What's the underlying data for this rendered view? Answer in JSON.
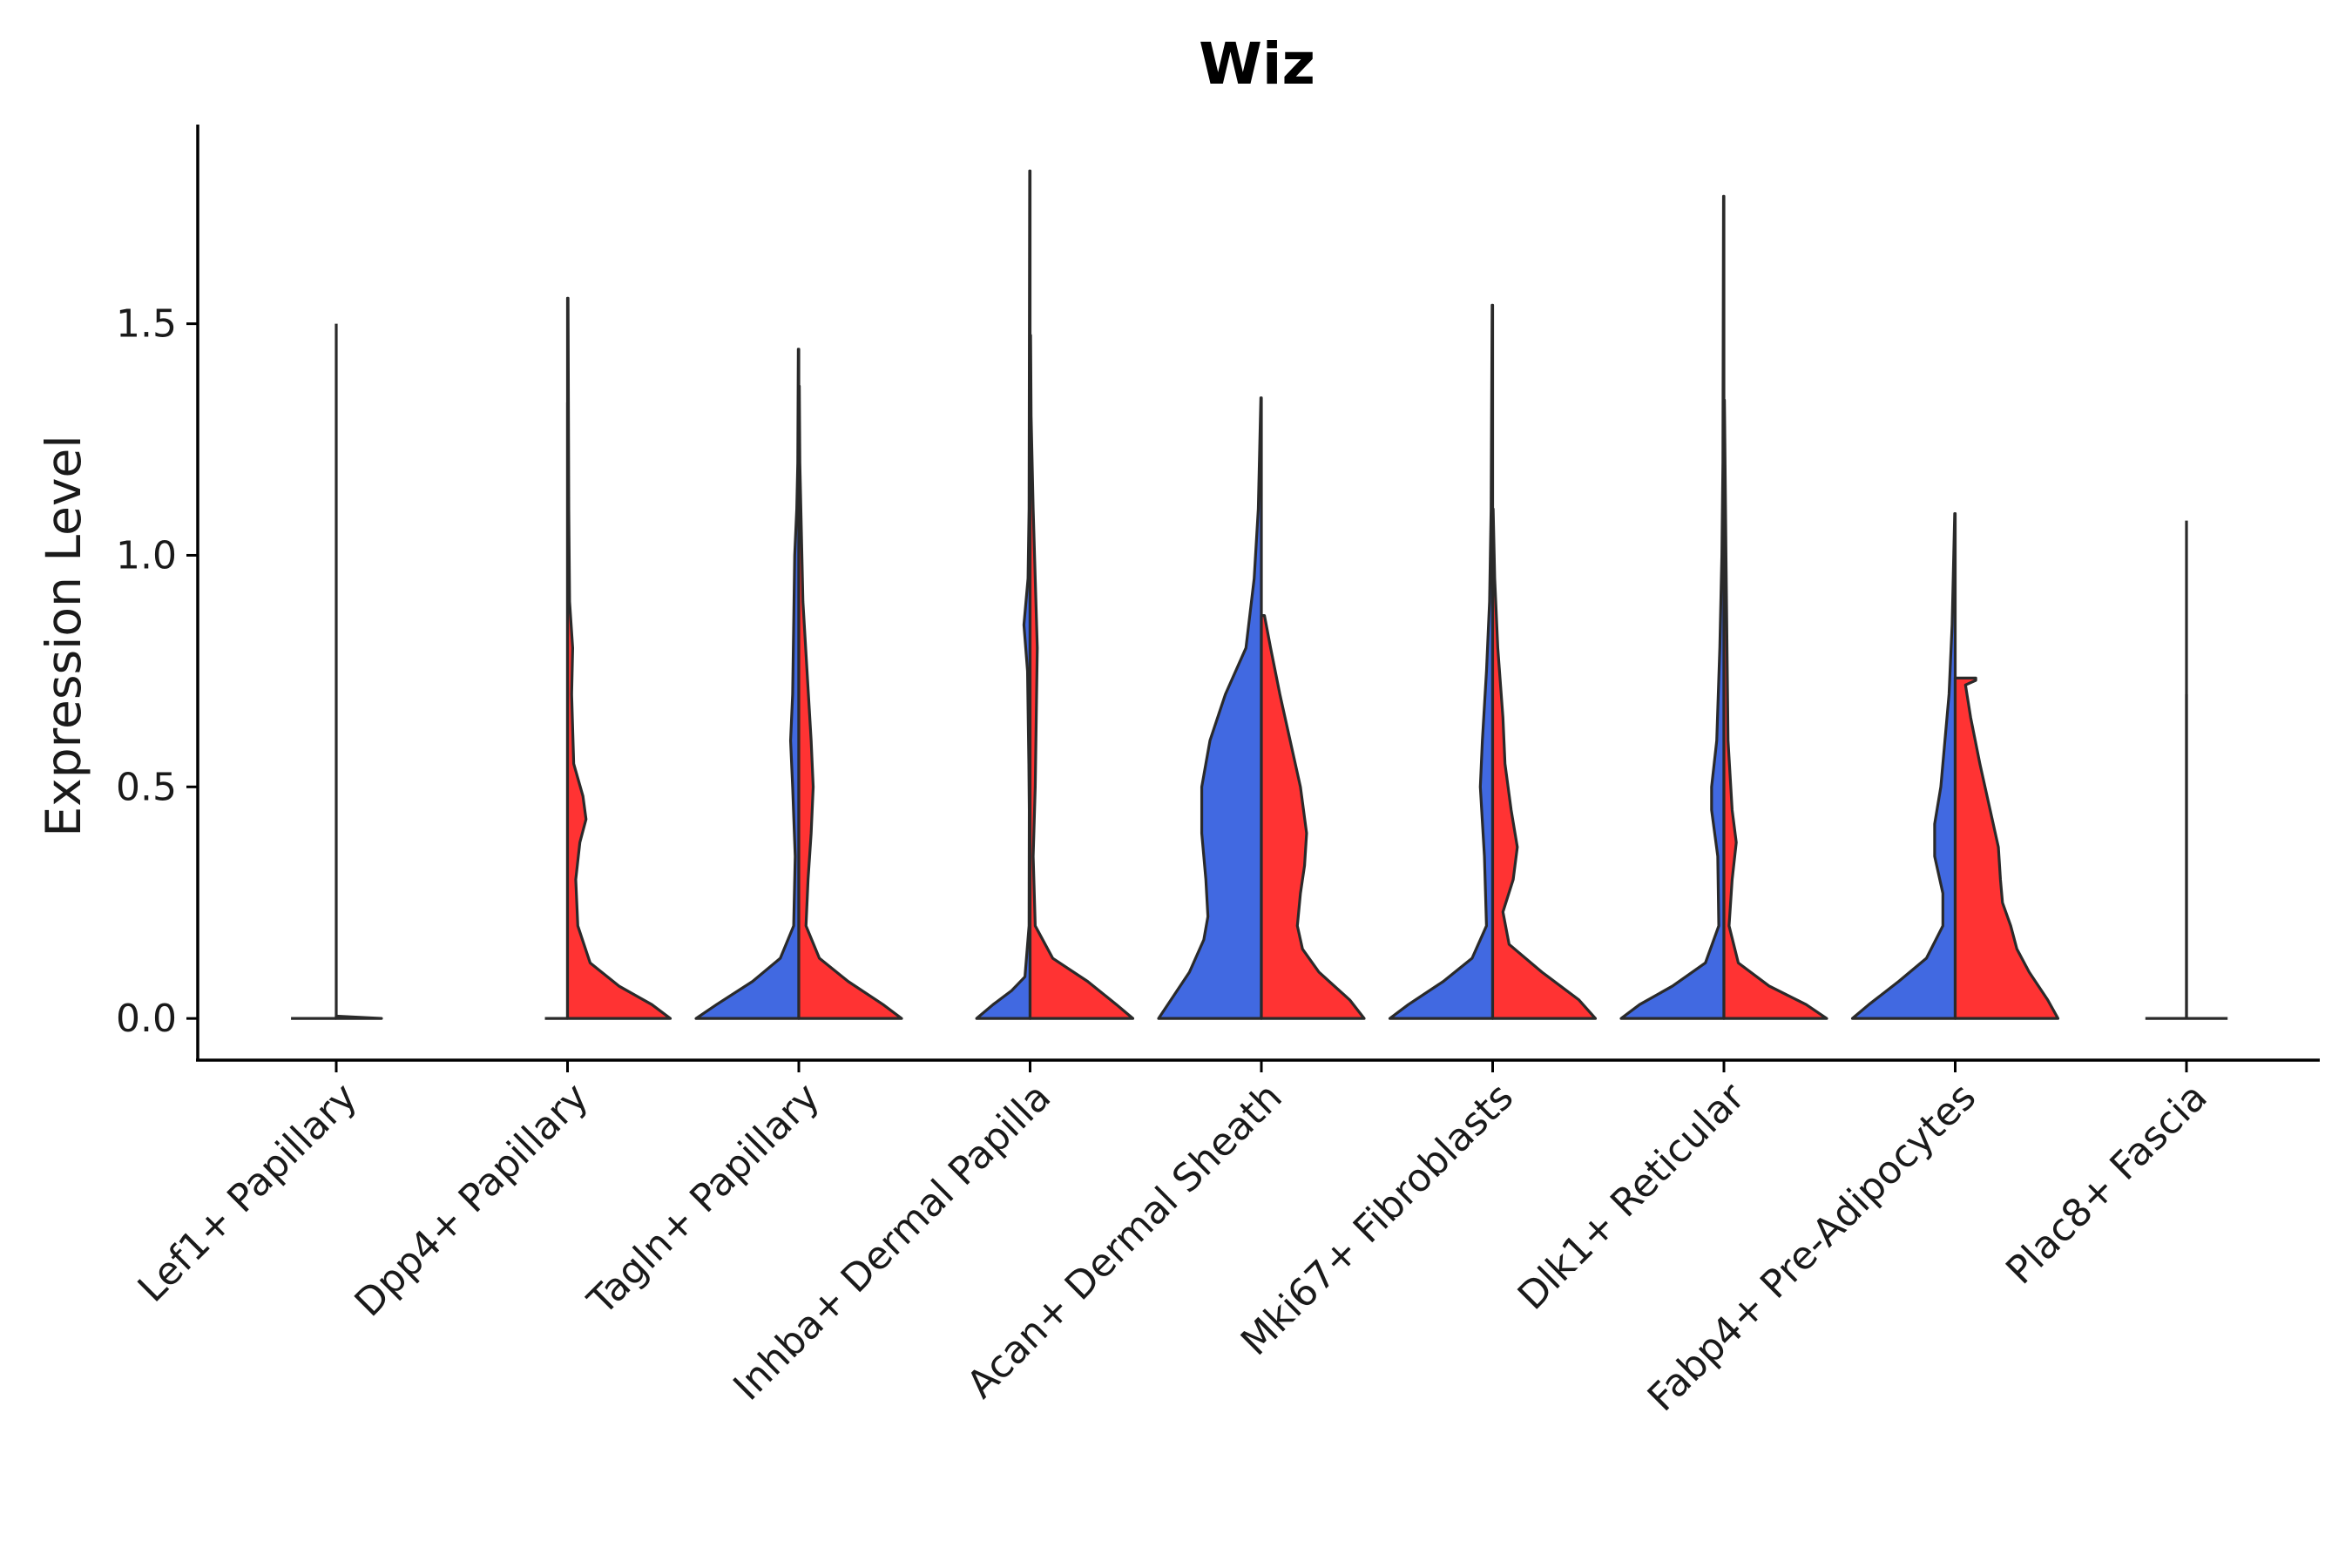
{
  "chart_data": {
    "type": "violin",
    "title": "Wiz",
    "ylabel": "Expression Level",
    "xlabel": "",
    "ylim": [
      -0.09,
      1.93
    ],
    "yticks": [
      0.0,
      0.5,
      1.0,
      1.5
    ],
    "ytick_labels": [
      "0.0",
      "0.5",
      "1.0",
      "1.5"
    ],
    "grid": false,
    "legend": "none",
    "colors": {
      "blue": "#4169E1",
      "red": "#FF3333"
    },
    "categories": [
      "Lef1+ Papillary",
      "Dpp4+ Papillary",
      "Tagln+ Papillary",
      "Inhba+ Dermal Papilla",
      "Acan+ Dermal Sheath",
      "Mki67+ Fibroblasts",
      "Dlk1+ Reticular",
      "Fabp4+ Pre-Adipocytes",
      "Plac8+ Fascia"
    ],
    "violins": [
      {
        "category": "Lef1+ Papillary",
        "side": "left",
        "color": "blue",
        "max": 1.5,
        "profile": [
          [
            0,
            0.44
          ],
          [
            0.005,
            0.02
          ],
          [
            0.01,
            0.003
          ],
          [
            1.5,
            0.003
          ]
        ]
      },
      {
        "category": "Lef1+ Papillary",
        "side": "right",
        "color": "red",
        "max": 0.005,
        "profile": [
          [
            0,
            0.44
          ],
          [
            0.005,
            0.0
          ]
        ]
      },
      {
        "category": "Dpp4+ Papillary",
        "side": "left",
        "color": "blue",
        "max": 1.33,
        "profile": [
          [
            0,
            0.22
          ],
          [
            0.005,
            0.02
          ],
          [
            0.01,
            0.003
          ],
          [
            1.33,
            0.003
          ]
        ]
      },
      {
        "category": "Dpp4+ Papillary",
        "side": "right",
        "color": "red",
        "max": 1.555,
        "profile": [
          [
            0,
            1.0
          ],
          [
            0.03,
            0.82
          ],
          [
            0.07,
            0.5
          ],
          [
            0.12,
            0.22
          ],
          [
            0.2,
            0.1
          ],
          [
            0.3,
            0.08
          ],
          [
            0.38,
            0.12
          ],
          [
            0.43,
            0.18
          ],
          [
            0.48,
            0.15
          ],
          [
            0.55,
            0.06
          ],
          [
            0.7,
            0.04
          ],
          [
            0.8,
            0.05
          ],
          [
            0.9,
            0.02
          ],
          [
            1.1,
            0.012
          ],
          [
            1.555,
            0.005
          ]
        ]
      },
      {
        "category": "Tagln+ Papillary",
        "side": "left",
        "color": "blue",
        "max": 1.445,
        "profile": [
          [
            0,
            1.0
          ],
          [
            0.03,
            0.8
          ],
          [
            0.08,
            0.45
          ],
          [
            0.13,
            0.18
          ],
          [
            0.2,
            0.05
          ],
          [
            0.35,
            0.035
          ],
          [
            0.5,
            0.06
          ],
          [
            0.6,
            0.08
          ],
          [
            0.7,
            0.06
          ],
          [
            0.85,
            0.05
          ],
          [
            1.0,
            0.04
          ],
          [
            1.1,
            0.02
          ],
          [
            1.2,
            0.01
          ],
          [
            1.445,
            0.005
          ]
        ]
      },
      {
        "category": "Tagln+ Papillary",
        "side": "right",
        "color": "red",
        "max": 1.365,
        "profile": [
          [
            0,
            1.0
          ],
          [
            0.03,
            0.82
          ],
          [
            0.08,
            0.48
          ],
          [
            0.13,
            0.2
          ],
          [
            0.2,
            0.07
          ],
          [
            0.3,
            0.09
          ],
          [
            0.4,
            0.12
          ],
          [
            0.5,
            0.14
          ],
          [
            0.6,
            0.12
          ],
          [
            0.75,
            0.08
          ],
          [
            0.9,
            0.04
          ],
          [
            1.0,
            0.03
          ],
          [
            1.2,
            0.01
          ],
          [
            1.365,
            0.005
          ]
        ]
      },
      {
        "category": "Inhba+ Dermal Papilla",
        "side": "left",
        "color": "blue",
        "max": 1.83,
        "profile": [
          [
            0,
            0.52
          ],
          [
            0.03,
            0.36
          ],
          [
            0.06,
            0.18
          ],
          [
            0.09,
            0.05
          ],
          [
            0.2,
            0.01
          ],
          [
            0.45,
            0.008
          ],
          [
            0.55,
            0.012
          ],
          [
            0.75,
            0.025
          ],
          [
            0.85,
            0.06
          ],
          [
            0.95,
            0.02
          ],
          [
            1.1,
            0.01
          ],
          [
            1.83,
            0.004
          ]
        ]
      },
      {
        "category": "Inhba+ Dermal Papilla",
        "side": "right",
        "color": "red",
        "max": 1.475,
        "profile": [
          [
            0,
            1.0
          ],
          [
            0.03,
            0.84
          ],
          [
            0.08,
            0.56
          ],
          [
            0.13,
            0.22
          ],
          [
            0.2,
            0.05
          ],
          [
            0.35,
            0.03
          ],
          [
            0.5,
            0.05
          ],
          [
            0.65,
            0.06
          ],
          [
            0.8,
            0.07
          ],
          [
            0.95,
            0.05
          ],
          [
            1.1,
            0.03
          ],
          [
            1.3,
            0.01
          ],
          [
            1.475,
            0.005
          ]
        ]
      },
      {
        "category": "Acan+ Dermal Sheath",
        "side": "left",
        "color": "blue",
        "max": 1.34,
        "profile": [
          [
            0,
            1.0
          ],
          [
            0.04,
            0.88
          ],
          [
            0.1,
            0.7
          ],
          [
            0.17,
            0.56
          ],
          [
            0.22,
            0.52
          ],
          [
            0.3,
            0.54
          ],
          [
            0.4,
            0.58
          ],
          [
            0.5,
            0.58
          ],
          [
            0.6,
            0.5
          ],
          [
            0.7,
            0.35
          ],
          [
            0.8,
            0.15
          ],
          [
            0.95,
            0.07
          ],
          [
            1.1,
            0.03
          ],
          [
            1.34,
            0.005
          ]
        ]
      },
      {
        "category": "Acan+ Dermal Sheath",
        "side": "right",
        "color": "red",
        "max": 0.87,
        "profile": [
          [
            0,
            1.0
          ],
          [
            0.04,
            0.86
          ],
          [
            0.1,
            0.56
          ],
          [
            0.15,
            0.4
          ],
          [
            0.2,
            0.35
          ],
          [
            0.27,
            0.38
          ],
          [
            0.33,
            0.42
          ],
          [
            0.4,
            0.44
          ],
          [
            0.5,
            0.38
          ],
          [
            0.6,
            0.28
          ],
          [
            0.7,
            0.18
          ],
          [
            0.8,
            0.09
          ],
          [
            0.87,
            0.03
          ]
        ]
      },
      {
        "category": "Mki67+ Fibroblasts",
        "side": "left",
        "color": "blue",
        "max": 1.54,
        "profile": [
          [
            0,
            1.0
          ],
          [
            0.03,
            0.82
          ],
          [
            0.08,
            0.48
          ],
          [
            0.13,
            0.2
          ],
          [
            0.2,
            0.06
          ],
          [
            0.35,
            0.08
          ],
          [
            0.5,
            0.12
          ],
          [
            0.6,
            0.1
          ],
          [
            0.75,
            0.06
          ],
          [
            0.9,
            0.03
          ],
          [
            1.1,
            0.015
          ],
          [
            1.54,
            0.005
          ]
        ]
      },
      {
        "category": "Mki67+ Fibroblasts",
        "side": "right",
        "color": "red",
        "max": 1.1,
        "profile": [
          [
            0,
            1.0
          ],
          [
            0.04,
            0.84
          ],
          [
            0.1,
            0.48
          ],
          [
            0.16,
            0.16
          ],
          [
            0.23,
            0.1
          ],
          [
            0.3,
            0.2
          ],
          [
            0.37,
            0.24
          ],
          [
            0.45,
            0.18
          ],
          [
            0.55,
            0.12
          ],
          [
            0.65,
            0.1
          ],
          [
            0.8,
            0.05
          ],
          [
            0.95,
            0.02
          ],
          [
            1.1,
            0.005
          ]
        ]
      },
      {
        "category": "Dlk1+ Reticular",
        "side": "left",
        "color": "blue",
        "max": 1.775,
        "profile": [
          [
            0,
            1.0
          ],
          [
            0.03,
            0.82
          ],
          [
            0.07,
            0.5
          ],
          [
            0.12,
            0.18
          ],
          [
            0.2,
            0.05
          ],
          [
            0.35,
            0.06
          ],
          [
            0.45,
            0.12
          ],
          [
            0.5,
            0.12
          ],
          [
            0.6,
            0.07
          ],
          [
            0.8,
            0.04
          ],
          [
            1.0,
            0.02
          ],
          [
            1.2,
            0.01
          ],
          [
            1.775,
            0.004
          ]
        ]
      },
      {
        "category": "Dlk1+ Reticular",
        "side": "right",
        "color": "red",
        "max": 1.335,
        "profile": [
          [
            0,
            1.0
          ],
          [
            0.03,
            0.8
          ],
          [
            0.07,
            0.44
          ],
          [
            0.12,
            0.14
          ],
          [
            0.2,
            0.05
          ],
          [
            0.3,
            0.08
          ],
          [
            0.38,
            0.12
          ],
          [
            0.45,
            0.08
          ],
          [
            0.6,
            0.04
          ],
          [
            0.8,
            0.03
          ],
          [
            1.0,
            0.02
          ],
          [
            1.335,
            0.005
          ]
        ]
      },
      {
        "category": "Fabp4+ Pre-Adipocytes",
        "side": "left",
        "color": "blue",
        "max": 1.09,
        "profile": [
          [
            0,
            1.0
          ],
          [
            0.03,
            0.84
          ],
          [
            0.08,
            0.55
          ],
          [
            0.13,
            0.28
          ],
          [
            0.2,
            0.12
          ],
          [
            0.27,
            0.12
          ],
          [
            0.35,
            0.2
          ],
          [
            0.42,
            0.2
          ],
          [
            0.5,
            0.14
          ],
          [
            0.6,
            0.1
          ],
          [
            0.7,
            0.06
          ],
          [
            0.85,
            0.03
          ],
          [
            1.09,
            0.005
          ]
        ]
      },
      {
        "category": "Fabp4+ Pre-Adipocytes",
        "side": "right",
        "color": "red",
        "max": 0.735,
        "profile": [
          [
            0,
            1.0
          ],
          [
            0.04,
            0.9
          ],
          [
            0.1,
            0.72
          ],
          [
            0.15,
            0.6
          ],
          [
            0.2,
            0.54
          ],
          [
            0.25,
            0.46
          ],
          [
            0.3,
            0.44
          ],
          [
            0.37,
            0.42
          ],
          [
            0.45,
            0.34
          ],
          [
            0.55,
            0.24
          ],
          [
            0.65,
            0.15
          ],
          [
            0.72,
            0.1
          ],
          [
            0.73,
            0.2
          ],
          [
            0.735,
            0.2
          ]
        ]
      },
      {
        "category": "Plac8+ Fascia",
        "side": "left",
        "color": "blue",
        "max": 0.7,
        "profile": [
          [
            0,
            0.4
          ],
          [
            0.005,
            0.02
          ],
          [
            0.01,
            0.003
          ],
          [
            0.7,
            0.003
          ]
        ]
      },
      {
        "category": "Plac8+ Fascia",
        "side": "right",
        "color": "red",
        "max": 1.075,
        "profile": [
          [
            0,
            0.4
          ],
          [
            0.005,
            0.02
          ],
          [
            0.01,
            0.003
          ],
          [
            1.075,
            0.003
          ]
        ]
      }
    ]
  }
}
